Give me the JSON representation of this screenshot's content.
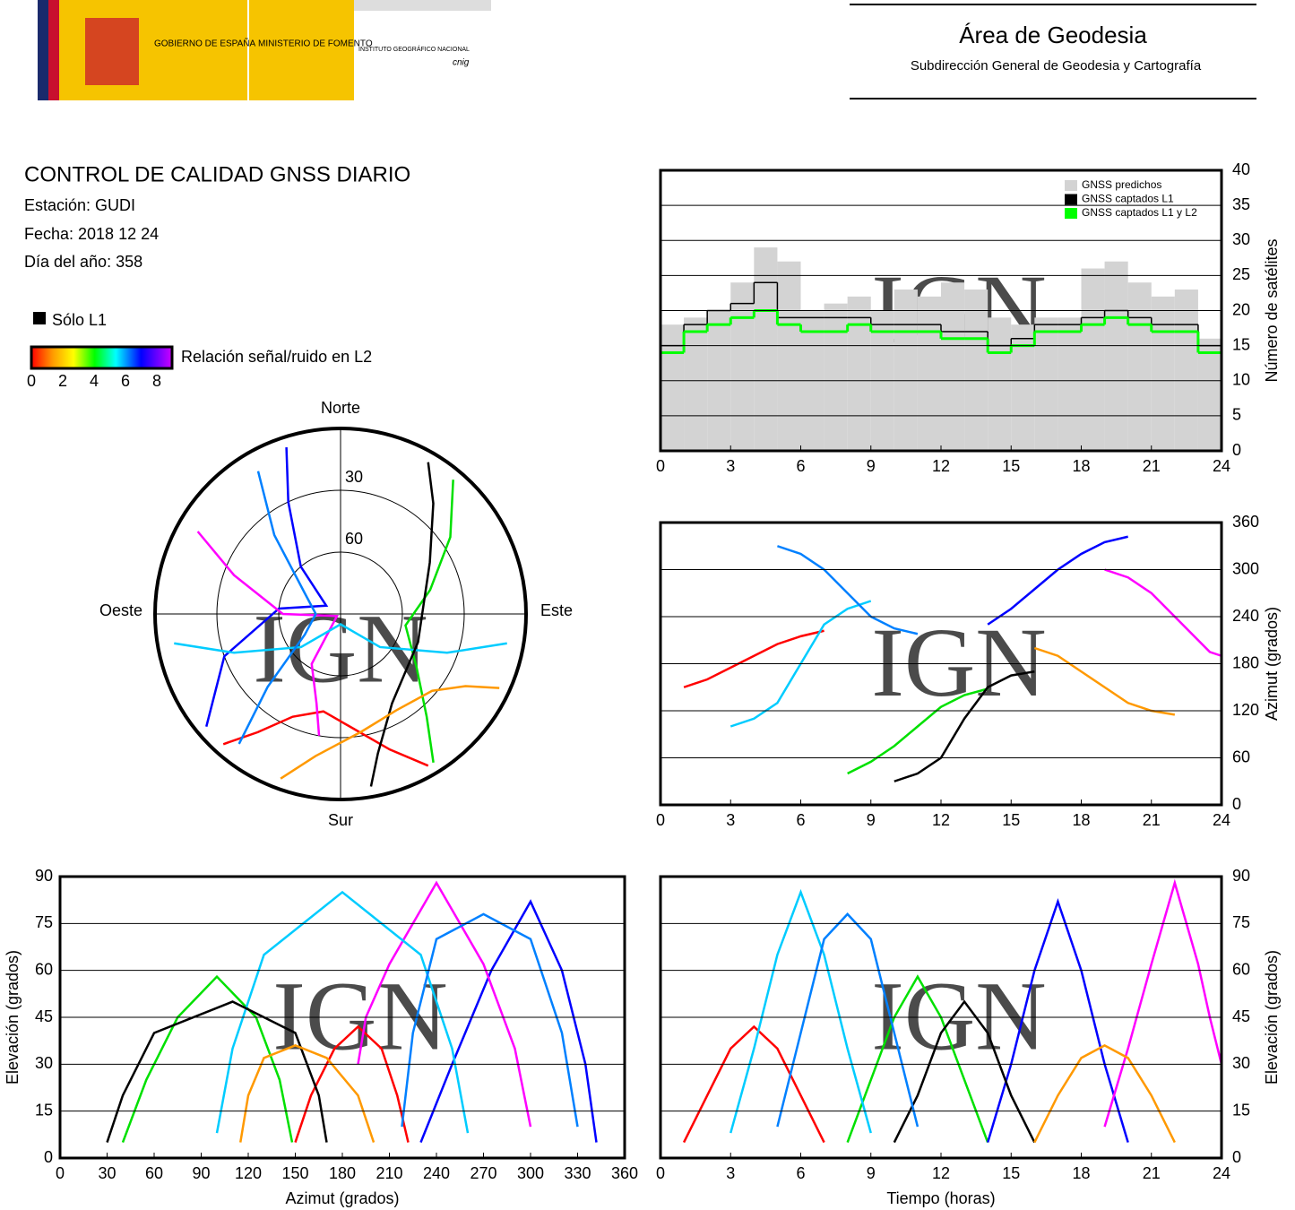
{
  "header": {
    "gov": "GOBIERNO DE ESPAÑA",
    "ministry": "MINISTERIO DE FOMENTO",
    "institute": "INSTITUTO GEOGRÁFICO NACIONAL",
    "cnig": "cnig",
    "title": "Área de Geodesia",
    "subtitle": "Subdirección General de Geodesia y Cartografía"
  },
  "report": {
    "title": "CONTROL DE CALIDAD GNSS DIARIO",
    "station": "Estación: GUDI",
    "date": "Fecha: 2018 12 24",
    "doy": "Día del año: 358",
    "l1_only": "Sólo L1",
    "snr_label": "Relación señal/ruido en L2",
    "snr_lim": [
      0,
      8
    ],
    "snr_ticks": [
      0,
      2,
      4,
      6,
      8
    ]
  },
  "watermark": "IGN",
  "chart_data": [
    {
      "type": "steps",
      "y_label": "Número de satélites",
      "x": [
        0,
        1,
        2,
        3,
        4,
        5,
        6,
        7,
        8,
        9,
        10,
        11,
        12,
        13,
        14,
        15,
        16,
        17,
        18,
        19,
        20,
        21,
        22,
        23
      ],
      "series": [
        {
          "name": "GNSS predichos",
          "color": "#d3d3d3",
          "values": [
            18,
            19,
            20,
            24,
            29,
            27,
            20,
            21,
            22,
            20,
            23,
            22,
            24,
            23,
            19,
            18,
            19,
            19,
            26,
            27,
            24,
            22,
            23,
            16
          ]
        },
        {
          "name": "GNSS captados L1",
          "color": "#000000",
          "values": [
            15,
            18,
            20,
            21,
            24,
            19,
            19,
            19,
            19,
            18,
            18,
            18,
            17,
            17,
            15,
            16,
            18,
            18,
            19,
            20,
            19,
            18,
            18,
            15
          ]
        },
        {
          "name": "GNSS captados L1 y L2",
          "color": "#00ff00",
          "values": [
            14,
            17,
            18,
            19,
            20,
            18,
            17,
            17,
            18,
            17,
            17,
            17,
            16,
            16,
            14,
            15,
            17,
            17,
            18,
            19,
            18,
            17,
            17,
            14
          ]
        }
      ],
      "xlim": [
        0,
        24
      ],
      "xticks": [
        0,
        3,
        6,
        9,
        12,
        15,
        18,
        21,
        24
      ],
      "ylim": [
        0,
        40
      ],
      "yticks": [
        0,
        5,
        10,
        15,
        20,
        25,
        30,
        35,
        40
      ],
      "grid": true
    },
    {
      "type": "skyplot",
      "north": "Norte",
      "south": "Sur",
      "east": "Este",
      "west": "Oeste",
      "rticks": [
        30,
        60
      ],
      "series": [
        {
          "color": "#ff0000",
          "time": [
            1,
            2,
            3,
            4,
            5,
            6,
            7
          ],
          "azimuth": [
            150,
            160,
            175,
            190,
            205,
            215,
            222
          ],
          "elevation": [
            5,
            20,
            35,
            42,
            35,
            20,
            5
          ]
        },
        {
          "color": "#00e000",
          "time": [
            8,
            9,
            10,
            11,
            12,
            13,
            14
          ],
          "azimuth": [
            40,
            55,
            75,
            100,
            125,
            140,
            148
          ],
          "elevation": [
            5,
            25,
            45,
            58,
            45,
            25,
            5
          ]
        },
        {
          "color": "#0000ff",
          "time": [
            14,
            15,
            16,
            17,
            18,
            19,
            20
          ],
          "azimuth": [
            230,
            250,
            275,
            300,
            320,
            335,
            342
          ],
          "elevation": [
            5,
            30,
            60,
            82,
            60,
            30,
            5
          ]
        },
        {
          "color": "#ff00ff",
          "time": [
            19,
            20,
            21,
            22,
            23,
            23.5,
            24
          ],
          "azimuth": [
            300,
            290,
            270,
            240,
            210,
            195,
            190
          ],
          "elevation": [
            10,
            35,
            62,
            88,
            62,
            45,
            30
          ]
        },
        {
          "color": "#00ccff",
          "time": [
            3,
            4,
            5,
            6,
            7,
            8,
            9
          ],
          "azimuth": [
            100,
            110,
            130,
            180,
            230,
            250,
            260
          ],
          "elevation": [
            8,
            35,
            65,
            85,
            65,
            35,
            8
          ]
        },
        {
          "color": "#000000",
          "time": [
            10,
            11,
            12,
            13,
            14,
            15,
            16
          ],
          "azimuth": [
            30,
            40,
            60,
            110,
            150,
            165,
            170
          ],
          "elevation": [
            5,
            20,
            40,
            50,
            40,
            20,
            5
          ]
        },
        {
          "color": "#ff9900",
          "time": [
            16,
            17,
            18,
            19,
            20,
            21,
            22
          ],
          "azimuth": [
            200,
            190,
            170,
            150,
            130,
            120,
            115
          ],
          "elevation": [
            5,
            20,
            32,
            36,
            32,
            20,
            5
          ]
        },
        {
          "color": "#0080ff",
          "time": [
            5,
            6,
            7,
            8,
            9,
            10,
            11
          ],
          "azimuth": [
            330,
            320,
            300,
            270,
            240,
            225,
            218
          ],
          "elevation": [
            10,
            40,
            70,
            78,
            70,
            40,
            10
          ]
        }
      ]
    },
    {
      "type": "azimuth-time",
      "y_label": "Azimut (grados)",
      "xlim": [
        0,
        24
      ],
      "xticks": [
        0,
        3,
        6,
        9,
        12,
        15,
        18,
        21,
        24
      ],
      "ylim": [
        0,
        360
      ],
      "yticks": [
        0,
        60,
        120,
        180,
        240,
        300,
        360
      ],
      "grid": true
    },
    {
      "type": "elevation-azimuth",
      "x_label": "Azimut (grados)",
      "y_label": "Elevación (grados)",
      "xlim": [
        0,
        360
      ],
      "xticks": [
        0,
        30,
        60,
        90,
        120,
        150,
        180,
        210,
        240,
        270,
        300,
        330,
        360
      ],
      "ylim": [
        0,
        90
      ],
      "yticks": [
        0,
        15,
        30,
        45,
        60,
        75,
        90
      ],
      "grid": true
    },
    {
      "type": "elevation-time",
      "x_label": "Tiempo (horas)",
      "y_label": "Elevación (grados)",
      "xlim": [
        0,
        24
      ],
      "xticks": [
        0,
        3,
        6,
        9,
        12,
        15,
        18,
        21,
        24
      ],
      "ylim": [
        0,
        90
      ],
      "yticks": [
        0,
        15,
        30,
        45,
        60,
        75,
        90
      ],
      "grid": true
    }
  ]
}
